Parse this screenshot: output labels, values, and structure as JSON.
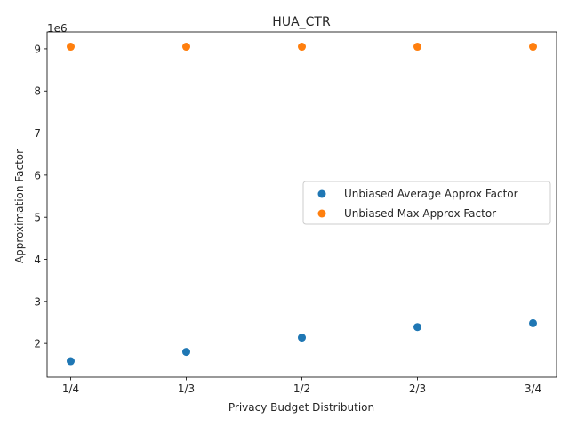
{
  "chart_data": {
    "type": "scatter",
    "title": "HUA_CTR",
    "xlabel": "Privacy Budget Distribution",
    "ylabel": "Approximation Factor",
    "y_offset_label": "1e6",
    "categories": [
      "1/4",
      "1/3",
      "1/2",
      "2/3",
      "3/4"
    ],
    "yticks": [
      2,
      3,
      4,
      5,
      6,
      7,
      8,
      9
    ],
    "ylim": [
      1.2,
      9.4
    ],
    "grid": false,
    "legend_position": "center-right",
    "series": [
      {
        "name": "Unbiased Average Approx Factor",
        "color": "#1f77b4",
        "values": [
          1.58,
          1.8,
          2.14,
          2.39,
          2.48
        ]
      },
      {
        "name": "Unbiased Max Approx Factor",
        "color": "#ff7f0e",
        "values": [
          9.05,
          9.05,
          9.05,
          9.05,
          9.05
        ]
      }
    ]
  }
}
